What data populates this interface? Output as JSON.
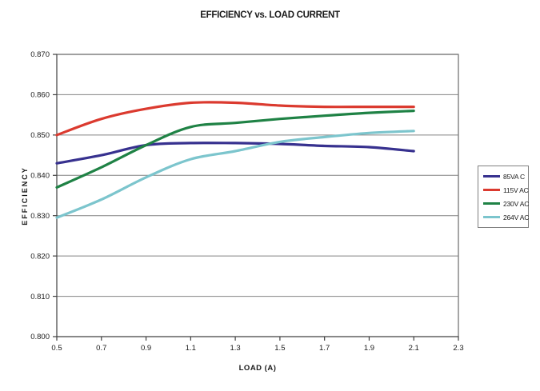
{
  "chart_data": {
    "type": "line",
    "title": "EFFICIENCY vs. LOAD CURRENT",
    "xlabel": "LOAD (A)",
    "ylabel": "EFFICIENCY",
    "xlim": [
      0.5,
      2.3
    ],
    "ylim": [
      0.8,
      0.87
    ],
    "grid": true,
    "legend_position": "right",
    "x_tick_labels": [
      "0.5",
      "0.7",
      "0.9",
      "1.1",
      "1.3",
      "1.5",
      "1.7",
      "1.9",
      "2.1",
      "2.3"
    ],
    "y_tick_labels": [
      "0.800",
      "0.810",
      "0.820",
      "0.830",
      "0.840",
      "0.850",
      "0.860",
      "0.870"
    ],
    "x": [
      0.5,
      0.7,
      0.9,
      1.1,
      1.3,
      1.5,
      1.7,
      1.9,
      2.1
    ],
    "series": [
      {
        "name": "85VA C",
        "color": "#37318F",
        "values": [
          0.843,
          0.845,
          0.8475,
          0.848,
          0.848,
          0.8478,
          0.8473,
          0.847,
          0.846
        ]
      },
      {
        "name": "115V AC",
        "color": "#DB3A2F",
        "values": [
          0.85,
          0.854,
          0.8565,
          0.858,
          0.858,
          0.8573,
          0.857,
          0.857,
          0.857
        ]
      },
      {
        "name": "230V AC",
        "color": "#1F8245",
        "values": [
          0.837,
          0.842,
          0.8475,
          0.852,
          0.853,
          0.854,
          0.8548,
          0.8555,
          0.856
        ]
      },
      {
        "name": "264V AC",
        "color": "#7CC5CD",
        "values": [
          0.8295,
          0.834,
          0.8395,
          0.844,
          0.846,
          0.8483,
          0.8495,
          0.8505,
          0.851
        ]
      }
    ],
    "grid_color": "#828282",
    "axis_color": "#404040",
    "plot_border_color": "#808080",
    "legend_border_color": "#808080"
  }
}
